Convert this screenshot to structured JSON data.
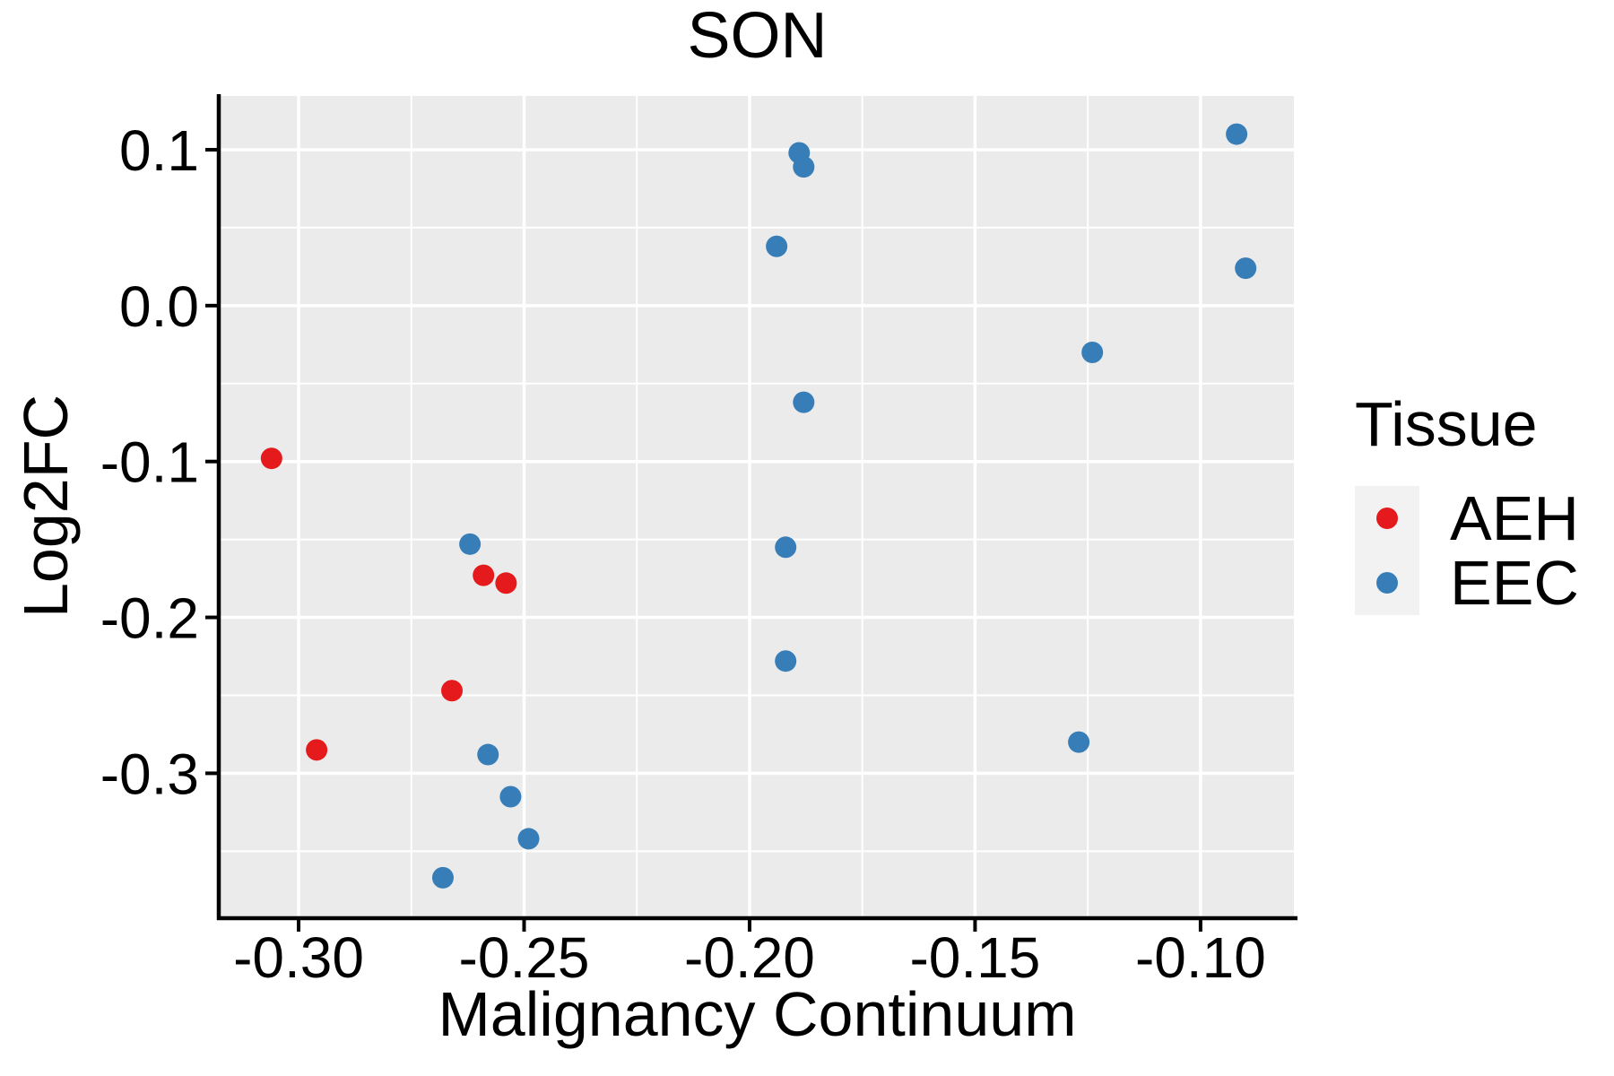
{
  "chart_data": {
    "type": "scatter",
    "title": "SON",
    "xlabel": "Malignancy Continuum",
    "ylabel": "Log2FC",
    "xlim": [
      -0.3173,
      -0.0793
    ],
    "ylim": [
      -0.3918,
      0.1345
    ],
    "grid": true,
    "legend_position": "right",
    "panel_bg": "#EBEBEB",
    "grid_color": "#FFFFFF",
    "axis_color": "#000000",
    "point_radius": 12,
    "x_ticks": {
      "values": [
        -0.3,
        -0.25,
        -0.2,
        -0.15,
        -0.1
      ],
      "labels": [
        "-0.30",
        "-0.25",
        "-0.20",
        "-0.15",
        "-0.10"
      ]
    },
    "y_ticks": {
      "values": [
        0.1,
        0.0,
        -0.1,
        -0.2,
        -0.3
      ],
      "labels": [
        "0.1",
        "0.0",
        "-0.1",
        "-0.2",
        "-0.3"
      ]
    },
    "x_minor": [
      -0.275,
      -0.225,
      -0.175,
      -0.125
    ],
    "y_minor": [
      0.05,
      -0.05,
      -0.15,
      -0.25,
      -0.35
    ],
    "legend": {
      "title": "Tissue",
      "key_bg": "#F2F2F2"
    },
    "series": [
      {
        "name": "AEH",
        "color": "#E41A1C",
        "points": [
          [
            -0.306,
            -0.098
          ],
          [
            -0.296,
            -0.285
          ],
          [
            -0.266,
            -0.247
          ],
          [
            -0.259,
            -0.173
          ],
          [
            -0.254,
            -0.178
          ]
        ]
      },
      {
        "name": "EEC",
        "color": "#377EB8",
        "points": [
          [
            -0.268,
            -0.367
          ],
          [
            -0.262,
            -0.153
          ],
          [
            -0.258,
            -0.288
          ],
          [
            -0.253,
            -0.315
          ],
          [
            -0.249,
            -0.342
          ],
          [
            -0.194,
            0.038
          ],
          [
            -0.192,
            -0.155
          ],
          [
            -0.192,
            -0.228
          ],
          [
            -0.189,
            0.098
          ],
          [
            -0.188,
            0.089
          ],
          [
            -0.188,
            -0.062
          ],
          [
            -0.127,
            -0.28
          ],
          [
            -0.124,
            -0.03
          ],
          [
            -0.092,
            0.11
          ],
          [
            -0.09,
            0.024
          ]
        ]
      }
    ]
  }
}
